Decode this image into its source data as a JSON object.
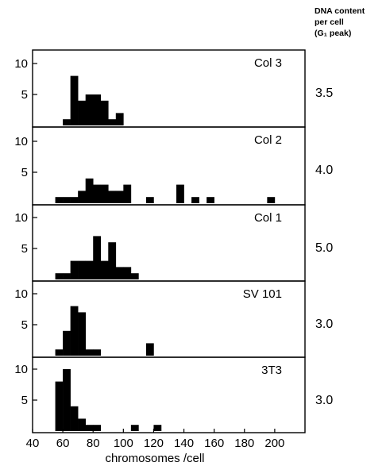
{
  "chart_data": {
    "type": "bar",
    "style": "stacked histograms, black filled bars, white background",
    "x_axis": {
      "label": "chromosomes /cell",
      "range": [
        40,
        220
      ],
      "ticks": [
        40,
        60,
        80,
        100,
        120,
        140,
        160,
        180,
        200
      ],
      "bin_width": 5
    },
    "y_axis": {
      "range": [
        0,
        12
      ],
      "ticks": [
        5,
        10
      ]
    },
    "right_header": [
      "DNA content",
      "per cell",
      "(G₁ peak)"
    ],
    "panels": [
      {
        "name": "Col 3",
        "dna_content": "3.5",
        "bins": [
          [
            60,
            1
          ],
          [
            65,
            8
          ],
          [
            70,
            4
          ],
          [
            75,
            5
          ],
          [
            80,
            5
          ],
          [
            85,
            4
          ],
          [
            90,
            1
          ],
          [
            95,
            2
          ]
        ]
      },
      {
        "name": "Col 2",
        "dna_content": "4.0",
        "bins": [
          [
            55,
            1
          ],
          [
            60,
            1
          ],
          [
            65,
            1
          ],
          [
            70,
            2
          ],
          [
            75,
            4
          ],
          [
            80,
            3
          ],
          [
            85,
            3
          ],
          [
            90,
            2
          ],
          [
            95,
            2
          ],
          [
            100,
            3
          ],
          [
            115,
            1
          ],
          [
            135,
            3
          ],
          [
            145,
            1
          ],
          [
            155,
            1
          ],
          [
            195,
            1
          ]
        ]
      },
      {
        "name": "Col 1",
        "dna_content": "5.0",
        "bins": [
          [
            55,
            1
          ],
          [
            60,
            1
          ],
          [
            65,
            3
          ],
          [
            70,
            3
          ],
          [
            75,
            3
          ],
          [
            80,
            7
          ],
          [
            85,
            3
          ],
          [
            90,
            6
          ],
          [
            95,
            2
          ],
          [
            100,
            2
          ],
          [
            105,
            1
          ]
        ]
      },
      {
        "name": "SV 101",
        "dna_content": "3.0",
        "bins": [
          [
            55,
            1
          ],
          [
            60,
            4
          ],
          [
            65,
            8
          ],
          [
            70,
            7
          ],
          [
            75,
            1
          ],
          [
            80,
            1
          ],
          [
            115,
            2
          ]
        ]
      },
      {
        "name": "3T3",
        "dna_content": "3.0",
        "bins": [
          [
            55,
            8
          ],
          [
            60,
            10
          ],
          [
            65,
            4
          ],
          [
            70,
            2
          ],
          [
            75,
            1
          ],
          [
            80,
            1
          ],
          [
            105,
            1
          ],
          [
            120,
            1
          ]
        ]
      }
    ]
  }
}
